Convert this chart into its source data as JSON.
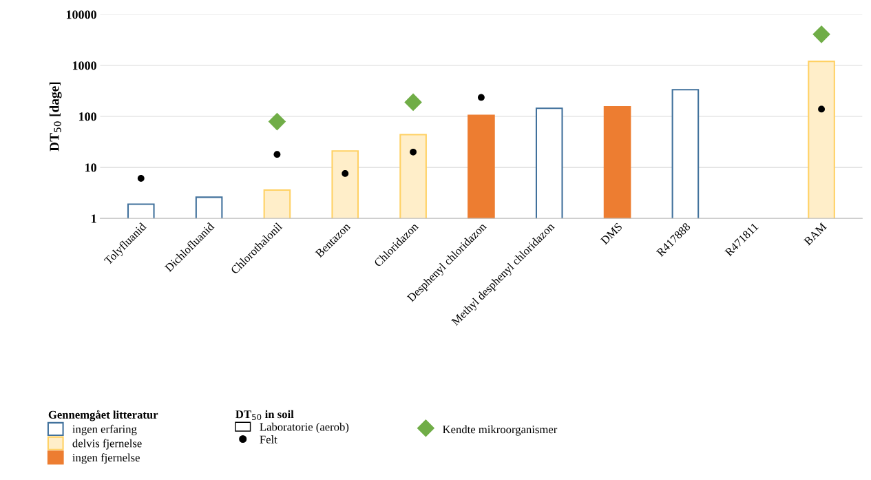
{
  "chart_data": {
    "type": "bar",
    "ylabel": "DT$_{50}$ [dage]",
    "categories": [
      "Tolyfluanid",
      "Dichlofluanid",
      "Chlorothalonil",
      "Bentazon",
      "Chloridazon",
      "Desphenyl chloridazon",
      "Methyl desphenyl chloridazon",
      "DMS",
      "R417888",
      "R471811",
      "BAM"
    ],
    "series": [
      {
        "name": "ingen erfaring",
        "color": "#41719c",
        "values": [
          1.9,
          2.6,
          null,
          null,
          null,
          null,
          144,
          null,
          333,
          null,
          null
        ]
      },
      {
        "name": "delvis fjernelse",
        "color": "#ffeec9",
        "values": [
          null,
          null,
          3.6,
          21,
          44,
          null,
          null,
          null,
          null,
          null,
          1200
        ]
      },
      {
        "name": "ingen fjernelse",
        "color": "#ed7d31",
        "values": [
          null,
          null,
          null,
          null,
          null,
          105,
          null,
          155,
          null,
          null,
          null
        ]
      },
      {
        "name": "Felt",
        "type": "scatter",
        "marker": "circle",
        "color": "#000000",
        "values": [
          6.1,
          null,
          18,
          7.6,
          20,
          236,
          null,
          null,
          null,
          null,
          139
        ]
      },
      {
        "name": "Kendte mikroorganismer",
        "type": "scatter",
        "marker": "diamond",
        "color": "#70ad47",
        "values": [
          null,
          null,
          79,
          null,
          190,
          null,
          null,
          null,
          null,
          null,
          4070
        ]
      }
    ],
    "log": "y",
    "ylim": [
      1,
      10000
    ],
    "yticks": [
      1,
      10,
      100,
      1000,
      10000
    ],
    "grid": "y",
    "legend": "bottom left",
    "legend_title": "Gennemgået litteratur",
    "annotations": [
      "DT$_{50}$ in soil",
      "Laboratorie (aerob)"
    ]
  }
}
